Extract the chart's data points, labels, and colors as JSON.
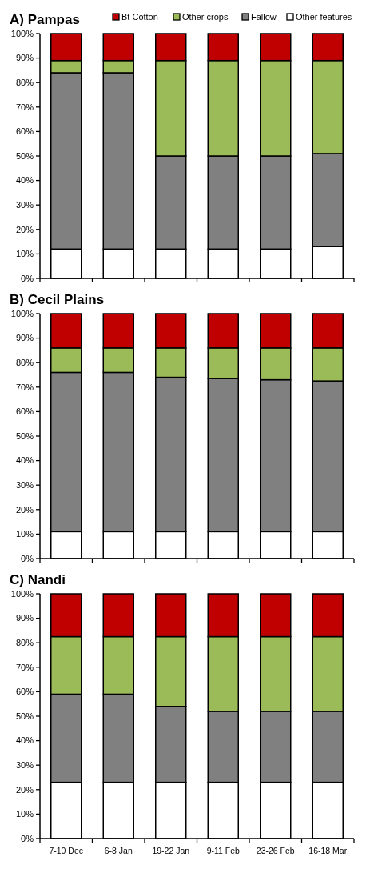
{
  "chart_data": [
    {
      "type": "bar",
      "title": "A) Pampas",
      "stacked": true,
      "legend": "top",
      "tick_labels": "y",
      "categories": [
        null,
        null,
        null,
        null,
        null,
        null
      ],
      "ylim": [
        0,
        100
      ],
      "yticks": [
        {
          "value": 0,
          "label": "0%"
        },
        {
          "value": 10,
          "label": "10%"
        },
        {
          "value": 20,
          "label": "20%"
        },
        {
          "value": 30,
          "label": "30%"
        },
        {
          "value": 40,
          "label": "40%"
        },
        {
          "value": 50,
          "label": "50%"
        },
        {
          "value": 60,
          "label": "60%"
        },
        {
          "value": 70,
          "label": "70%"
        },
        {
          "value": 80,
          "label": "80%"
        },
        {
          "value": 90,
          "label": "90%"
        },
        {
          "value": 100,
          "label": "100%"
        }
      ],
      "series": [
        {
          "name": "Other features",
          "color": "#ffffff",
          "values": [
            12,
            12,
            12,
            12,
            12,
            13
          ]
        },
        {
          "name": "Fallow",
          "color": "#808080",
          "values": [
            72,
            72,
            38,
            38,
            38,
            38
          ]
        },
        {
          "name": "Other crops",
          "color": "#9bbb59",
          "values": [
            5,
            5,
            39,
            39,
            39,
            38
          ]
        },
        {
          "name": "Bt Cotton",
          "color": "#c00000",
          "values": [
            11,
            11,
            11,
            11,
            11,
            11
          ]
        }
      ]
    },
    {
      "type": "bar",
      "title": "B) Cecil Plains",
      "stacked": true,
      "tick_labels": "y",
      "categories": [
        null,
        null,
        null,
        null,
        null,
        null
      ],
      "ylim": [
        0,
        100
      ],
      "yticks": [
        {
          "value": 0,
          "label": "0%"
        },
        {
          "value": 10,
          "label": "10%"
        },
        {
          "value": 20,
          "label": "20%"
        },
        {
          "value": 30,
          "label": "30%"
        },
        {
          "value": 40,
          "label": "40%"
        },
        {
          "value": 50,
          "label": "50%"
        },
        {
          "value": 60,
          "label": "60%"
        },
        {
          "value": 70,
          "label": "70%"
        },
        {
          "value": 80,
          "label": "80%"
        },
        {
          "value": 90,
          "label": "90%"
        },
        {
          "value": 100,
          "label": "100%"
        }
      ],
      "series": [
        {
          "color": "#ffffff",
          "values": [
            11,
            11,
            11,
            11,
            11,
            11
          ]
        },
        {
          "color": "#808080",
          "values": [
            65,
            65,
            63,
            62.5,
            62,
            61.5
          ]
        },
        {
          "color": "#9bbb59",
          "values": [
            10,
            10,
            12,
            12.5,
            13,
            13.5
          ]
        },
        {
          "color": "#c00000",
          "values": [
            14,
            14,
            14,
            14,
            14,
            14
          ]
        }
      ]
    },
    {
      "type": "bar",
      "title": "C) Nandi",
      "stacked": true,
      "categories": [
        "7-10 Dec",
        "6-8 Jan",
        "19-22 Jan",
        "9-11 Feb",
        "23-26 Feb",
        "16-18 Mar"
      ],
      "ylim": [
        0,
        100
      ],
      "yticks": [
        {
          "value": 0,
          "label": "0%"
        },
        {
          "value": 10,
          "label": "10%"
        },
        {
          "value": 20,
          "label": "20%"
        },
        {
          "value": 30,
          "label": "30%"
        },
        {
          "value": 40,
          "label": "40%"
        },
        {
          "value": 50,
          "label": "50%"
        },
        {
          "value": 60,
          "label": "60%"
        },
        {
          "value": 70,
          "label": "70%"
        },
        {
          "value": 80,
          "label": "80%"
        },
        {
          "value": 90,
          "label": "90%"
        },
        {
          "value": 100,
          "label": "100%"
        }
      ],
      "series": [
        {
          "color": "#ffffff",
          "values": [
            23,
            23,
            23,
            23,
            23,
            23
          ]
        },
        {
          "color": "#808080",
          "values": [
            36,
            36,
            31,
            29,
            29,
            29
          ]
        },
        {
          "color": "#9bbb59",
          "values": [
            23.5,
            23.5,
            28.5,
            30.5,
            30.5,
            30.5
          ]
        },
        {
          "color": "#c00000",
          "values": [
            17.5,
            17.5,
            17.5,
            17.5,
            17.5,
            17.5
          ]
        }
      ]
    }
  ]
}
